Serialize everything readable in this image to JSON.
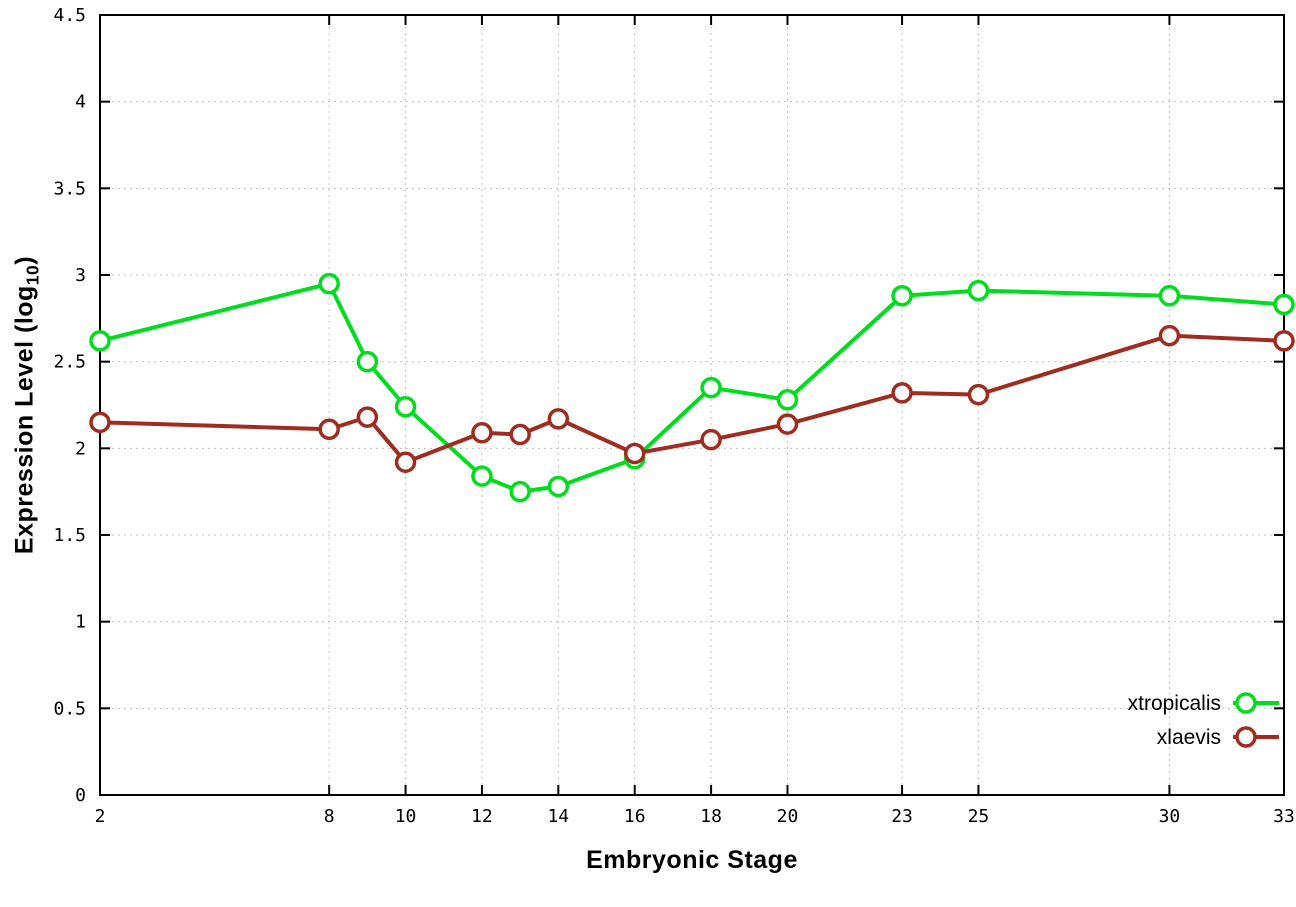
{
  "chart_data": {
    "type": "line",
    "title": "",
    "xlabel": "Embryonic Stage",
    "ylabel": "Expression Level (log10)",
    "ylabel_prefix": "Expression Level (log",
    "ylabel_sub": "10",
    "ylabel_suffix": ")",
    "xlim": [
      2,
      33
    ],
    "ylim": [
      0,
      4.5
    ],
    "xticks": [
      2,
      8,
      10,
      12,
      14,
      16,
      18,
      20,
      23,
      25,
      30,
      33
    ],
    "yticks": [
      0,
      0.5,
      1,
      1.5,
      2,
      2.5,
      3,
      3.5,
      4,
      4.5
    ],
    "ytick_labels": [
      "0",
      "0.5",
      "1",
      "1.5",
      "2",
      "2.5",
      "3",
      "3.5",
      "4",
      "4.5"
    ],
    "grid": true,
    "legend_position": "bottom-right",
    "x": [
      2,
      8,
      9,
      10,
      12,
      13,
      14,
      16,
      18,
      20,
      23,
      25,
      30,
      33
    ],
    "series": [
      {
        "name": "xtropicalis",
        "color": "#00dd1c",
        "values": [
          2.62,
          2.95,
          2.5,
          2.24,
          1.84,
          1.75,
          1.78,
          1.94,
          2.35,
          2.28,
          2.88,
          2.91,
          2.88,
          2.83
        ]
      },
      {
        "name": "xlaevis",
        "color": "#a02c20",
        "values": [
          2.15,
          2.11,
          2.18,
          1.92,
          2.09,
          2.08,
          2.17,
          1.97,
          2.05,
          2.14,
          2.32,
          2.31,
          2.65,
          2.62
        ]
      }
    ]
  }
}
